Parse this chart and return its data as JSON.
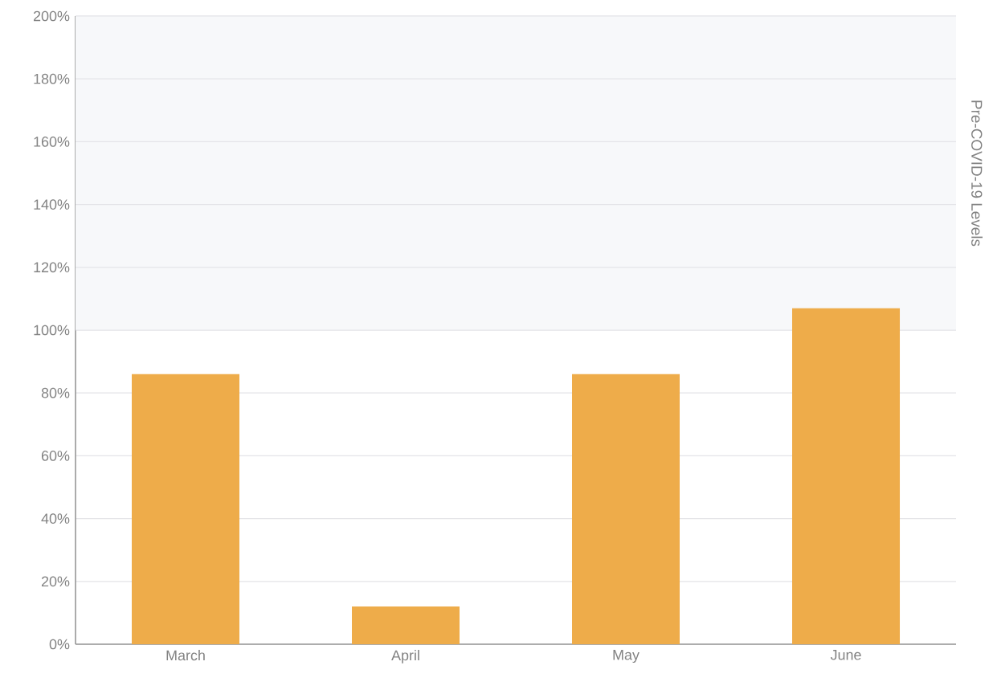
{
  "chart_data": {
    "type": "bar",
    "categories": [
      "March",
      "April",
      "May",
      "June"
    ],
    "values": [
      86,
      12,
      86,
      107
    ],
    "color": "#eeac4a",
    "ylim": [
      0,
      200
    ],
    "yticks": [
      {
        "value": 0,
        "label": "0%"
      },
      {
        "value": 20,
        "label": "20%"
      },
      {
        "value": 40,
        "label": "40%"
      },
      {
        "value": 60,
        "label": "60%"
      },
      {
        "value": 80,
        "label": "80%"
      },
      {
        "value": 100,
        "label": "100%"
      },
      {
        "value": 120,
        "label": "120%"
      },
      {
        "value": 140,
        "label": "140%"
      },
      {
        "value": 160,
        "label": "160%"
      },
      {
        "value": 180,
        "label": "180%"
      },
      {
        "value": 200,
        "label": "200%"
      }
    ],
    "bands": [
      {
        "axis": "y",
        "from": 100,
        "to": 200,
        "label": "Pre-COVID-19 Levels",
        "color": "#f7f8fa"
      }
    ],
    "grid": "y"
  }
}
